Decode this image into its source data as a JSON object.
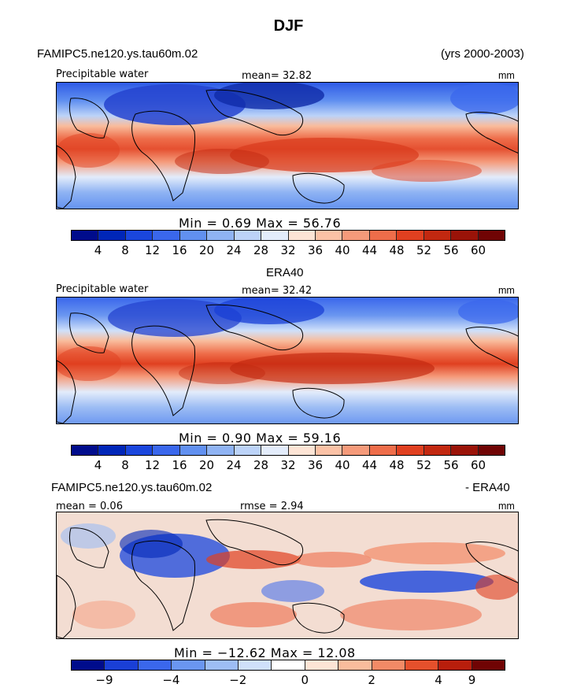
{
  "title": "DJF",
  "panel1": {
    "case": "FAMIPC5.ne120.ys.tau60m.02",
    "years": "(yrs 2000-2003)",
    "field": "Precipitable water",
    "mean": "mean=  32.82",
    "units": "mm",
    "minmax": "Min =     0.69  Max =    56.76"
  },
  "panel2": {
    "case": "ERA40",
    "field": "Precipitable water",
    "mean": "mean=  32.42",
    "units": "mm",
    "minmax": "Min =     0.90  Max =    59.16"
  },
  "panel3": {
    "case": "FAMIPC5.ne120.ys.tau60m.02",
    "minus": "- ERA40",
    "mean": "mean =    0.06",
    "rmse": "rmse =     2.94",
    "units": "mm",
    "minmax": "Min = −12.62  Max =    12.08"
  },
  "colorbar_abs": {
    "colors": [
      "#000c8c",
      "#0026b8",
      "#1a46dd",
      "#3a67ec",
      "#6190f0",
      "#8fb3f3",
      "#bcd3f8",
      "#e3ecfb",
      "#fde4d5",
      "#fbc2a6",
      "#f59a7a",
      "#ee6d4a",
      "#e04020",
      "#c22810",
      "#9a1308",
      "#700404"
    ],
    "ticks": [
      "4",
      "8",
      "12",
      "16",
      "20",
      "24",
      "28",
      "32",
      "36",
      "40",
      "44",
      "48",
      "52",
      "56",
      "60"
    ]
  },
  "colorbar_diff": {
    "colors": [
      "#000c8c",
      "#1a3fd6",
      "#3a67ec",
      "#6a96f0",
      "#9dbdf4",
      "#cfe0fa",
      "#ffffff",
      "#fde4d5",
      "#f9bc9c",
      "#f28a66",
      "#e5502c",
      "#b81e0c",
      "#700404"
    ],
    "ticks": [
      "−9",
      "−4",
      "−2",
      "0",
      "2",
      "4",
      "9"
    ]
  }
}
